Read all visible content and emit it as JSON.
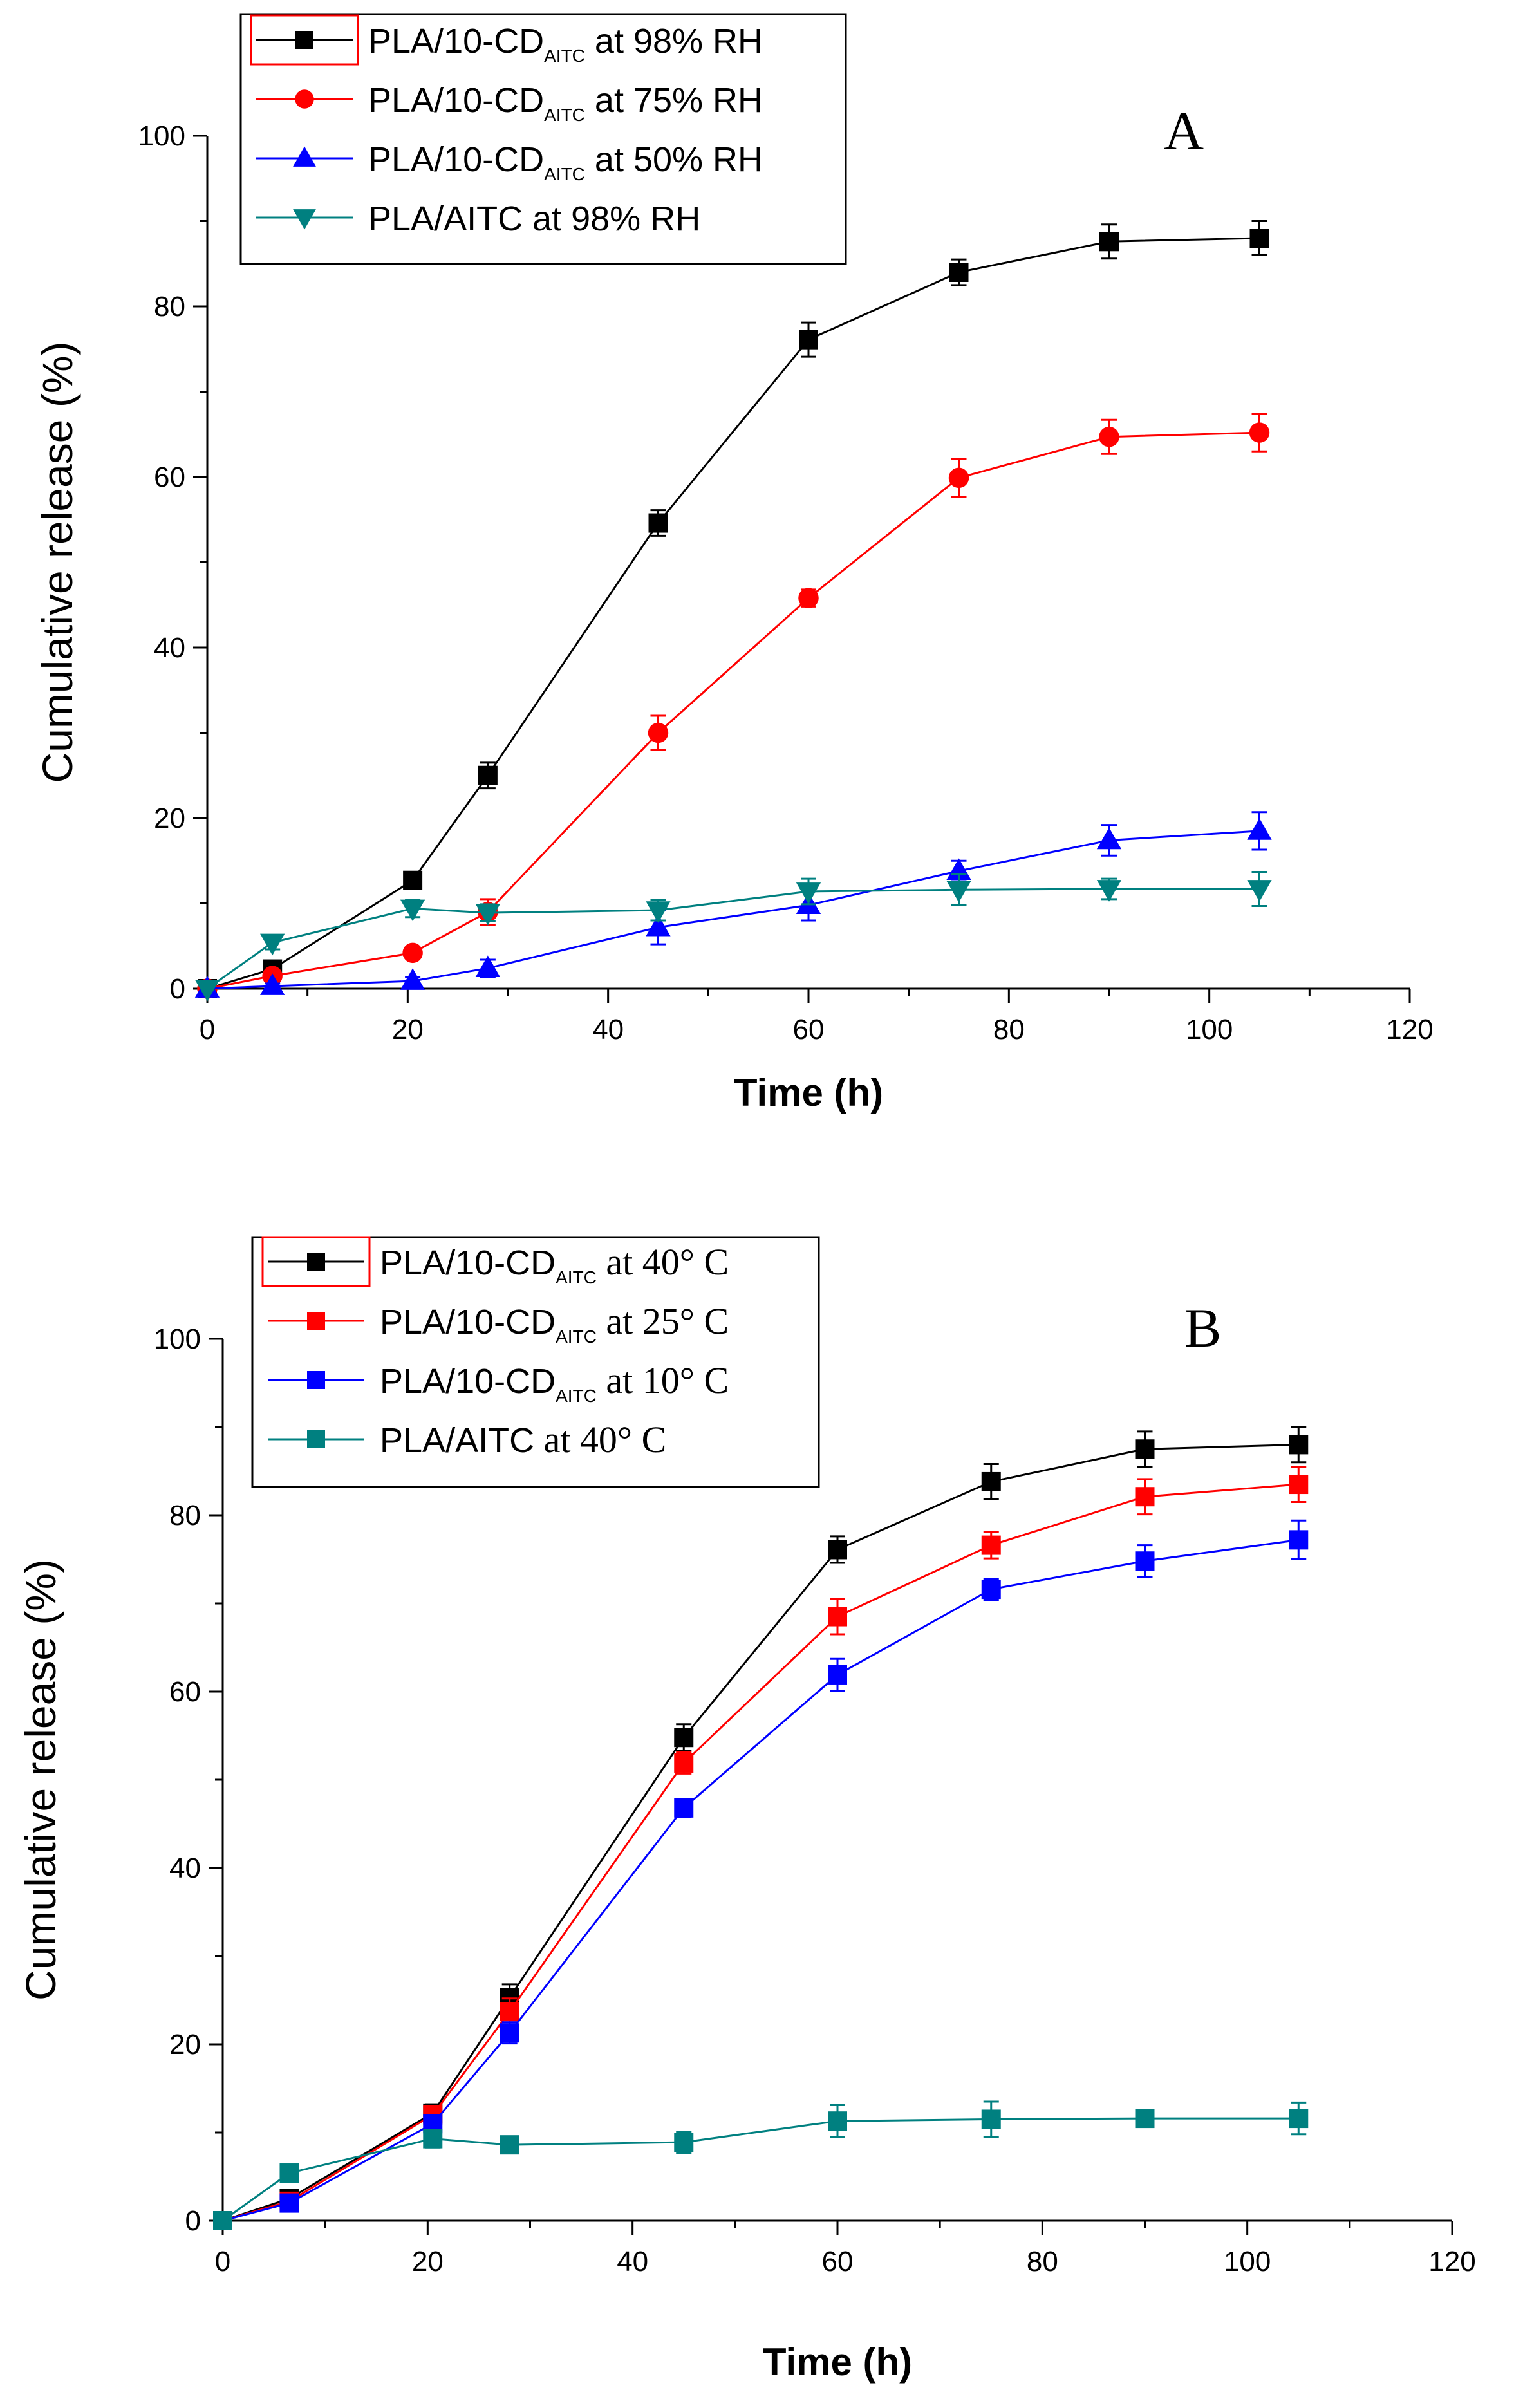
{
  "chart_data": [
    {
      "panel_label": "A",
      "type": "line",
      "xlabel": "Time (h)",
      "ylabel": "Cumulative release (%)",
      "xlim": [
        0,
        120
      ],
      "ylim": [
        0,
        100
      ],
      "xticks": [
        0,
        20,
        40,
        60,
        80,
        100,
        120
      ],
      "yticks": [
        0,
        20,
        40,
        60,
        80,
        100
      ],
      "legend_position": "top-left",
      "x": [
        0,
        6.5,
        20.5,
        28,
        45,
        60,
        75,
        90,
        105
      ],
      "series": [
        {
          "name": "PLA/10-CD at 98% RH",
          "legend_main": "PLA/10-CD",
          "legend_sub": "AITC",
          "legend_rest": " at 98% RH",
          "marker": "square",
          "color": "#000000",
          "values": [
            0,
            2.3,
            12.7,
            25,
            54.6,
            76.1,
            84,
            87.6,
            88
          ],
          "errors": [
            0,
            0.8,
            1,
            1.5,
            1.5,
            2,
            1.5,
            2,
            2
          ]
        },
        {
          "name": "PLA/10-CD at 75% RH",
          "legend_main": "PLA/10-CD",
          "legend_sub": "AITC",
          "legend_rest": " at 75% RH",
          "marker": "circle",
          "color": "#ff0000",
          "values": [
            0,
            1.5,
            4.2,
            9,
            30,
            45.8,
            59.9,
            64.7,
            65.2
          ],
          "errors": [
            0,
            0.5,
            0.6,
            1.5,
            2,
            1,
            2.2,
            2,
            2.2
          ]
        },
        {
          "name": "PLA/10-CD at 50% RH",
          "legend_main": "PLA/10-CD",
          "legend_sub": "AITC",
          "legend_rest": " at 50% RH",
          "marker": "triangle-up",
          "color": "#0000ff",
          "values": [
            0,
            0.3,
            0.9,
            2.4,
            7.2,
            9.8,
            13.8,
            17.4,
            18.5
          ],
          "errors": [
            0,
            0.3,
            0.5,
            1,
            2,
            1.8,
            1.2,
            1.8,
            2.2
          ]
        },
        {
          "name": "PLA/AITC at 98% RH",
          "legend_main": "PLA/AITC at 98% RH",
          "legend_sub": "",
          "legend_rest": "",
          "marker": "triangle-down",
          "color": "#008080",
          "values": [
            0,
            5.4,
            9.4,
            8.9,
            9.2,
            11.4,
            11.6,
            11.7,
            11.7
          ],
          "errors": [
            0,
            0.8,
            1,
            1,
            1.2,
            1.5,
            1.8,
            1.2,
            2
          ]
        }
      ]
    },
    {
      "panel_label": "B",
      "type": "line",
      "xlabel": "Time (h)",
      "ylabel": "Cumulative release (%)",
      "xlim": [
        0,
        120
      ],
      "ylim": [
        0,
        100
      ],
      "xticks": [
        0,
        20,
        40,
        60,
        80,
        100,
        120
      ],
      "yticks": [
        0,
        20,
        40,
        60,
        80,
        100
      ],
      "legend_position": "top-left",
      "x": [
        0,
        6.5,
        20.5,
        28,
        45,
        60,
        75,
        90,
        105
      ],
      "series": [
        {
          "name": "PLA/10-CD at 40° C",
          "legend_main": "PLA/10-CD",
          "legend_sub": "AITC",
          "legend_rest": " at 40° C",
          "marker": "square",
          "color": "#000000",
          "values": [
            0,
            2.5,
            12.2,
            25.3,
            54.8,
            76.1,
            83.8,
            87.5,
            88
          ],
          "errors": [
            0,
            0.8,
            1,
            1.5,
            1.5,
            1.5,
            2,
            2,
            2
          ]
        },
        {
          "name": "PLA/10-CD at 25° C",
          "legend_main": "PLA/10-CD",
          "legend_sub": "AITC",
          "legend_rest": " at 25° C",
          "marker": "square",
          "color": "#ff0000",
          "values": [
            0,
            2.2,
            12,
            23.7,
            51.9,
            68.5,
            76.6,
            82.1,
            83.5
          ],
          "errors": [
            0,
            0.6,
            1,
            1.5,
            1.2,
            2,
            1.5,
            2,
            2
          ]
        },
        {
          "name": "PLA/10-CD at 10° C",
          "legend_main": "PLA/10-CD",
          "legend_sub": "AITC",
          "legend_rest": " at 10° C",
          "marker": "square",
          "color": "#0000ff",
          "values": [
            0,
            2,
            11,
            21.3,
            46.8,
            61.9,
            71.6,
            74.8,
            77.2
          ],
          "errors": [
            0,
            0.6,
            1,
            1.2,
            1,
            1.8,
            1.2,
            1.8,
            2.2
          ]
        },
        {
          "name": "PLA/AITC at 40° C",
          "legend_main": "PLA/AITC at 40° C",
          "legend_sub": "",
          "legend_rest": "",
          "marker": "square",
          "color": "#008080",
          "values": [
            0,
            5.4,
            9.3,
            8.6,
            8.9,
            11.3,
            11.5,
            11.6,
            11.6
          ],
          "errors": [
            0,
            0.8,
            1,
            0.8,
            1.2,
            1.8,
            2,
            0.8,
            1.8
          ]
        }
      ]
    }
  ]
}
